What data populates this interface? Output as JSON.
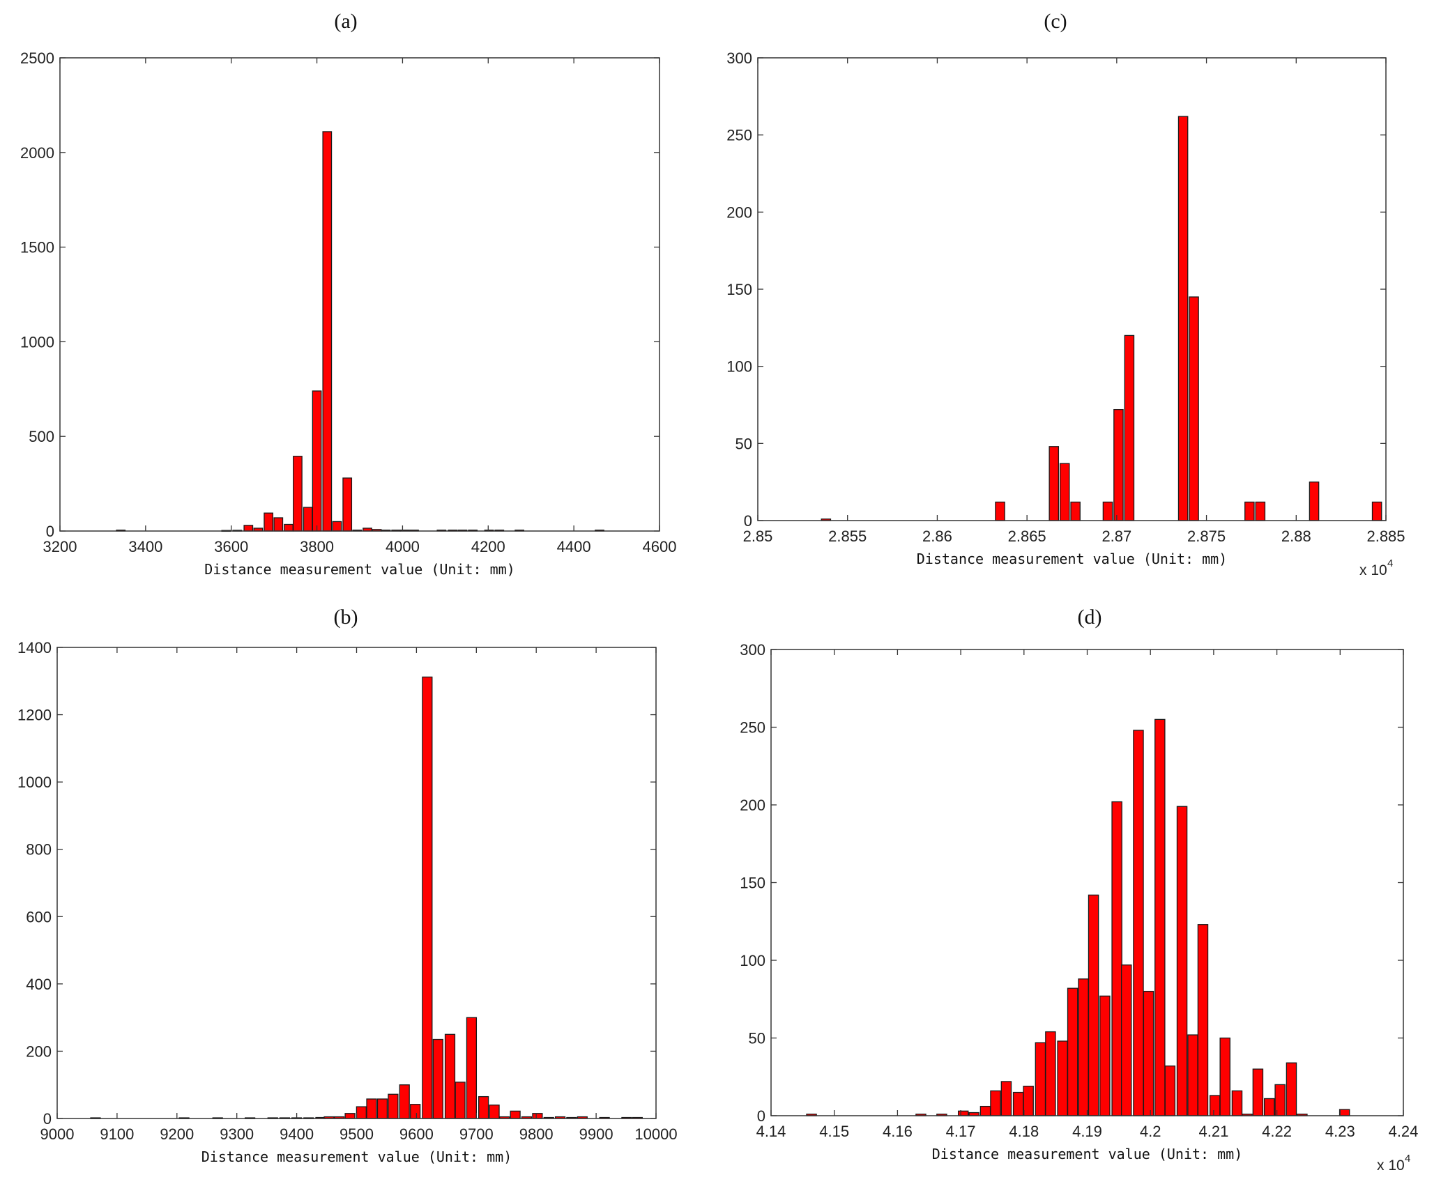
{
  "chart_data": [
    {
      "type": "bar",
      "panel": "(a)",
      "title": "(a)",
      "xlabel": "Distance measurement value (Unit: mm)",
      "ylabel": "",
      "xlim": [
        3200,
        4600
      ],
      "ylim": [
        0,
        2500
      ],
      "xticks": [
        3200,
        3400,
        3600,
        3800,
        4000,
        4200,
        4400,
        4600
      ],
      "xtick_labels": [
        "3200",
        "3400",
        "3600",
        "3800",
        "4000",
        "4200",
        "4400",
        "4600"
      ],
      "yticks": [
        0,
        500,
        1000,
        1500,
        2000,
        2500
      ],
      "ytick_labels": [
        "0",
        "500",
        "1000",
        "1500",
        "2000",
        "2500"
      ],
      "x_multiplier": "",
      "bin_width": 22,
      "x": [
        3342,
        3588,
        3614,
        3640,
        3663,
        3687,
        3710,
        3734,
        3755,
        3779,
        3800,
        3824,
        3847,
        3871,
        3894,
        3918,
        3940,
        3961,
        3985,
        4005,
        4027,
        4091,
        4117,
        4140,
        4164,
        4202,
        4226,
        4273,
        4460
      ],
      "values": [
        5,
        3,
        4,
        30,
        15,
        95,
        70,
        35,
        395,
        125,
        740,
        2110,
        50,
        280,
        5,
        15,
        8,
        5,
        5,
        5,
        5,
        5,
        5,
        5,
        5,
        5,
        5,
        5,
        5
      ]
    },
    {
      "type": "bar",
      "panel": "(c)",
      "title": "(c)",
      "xlabel": "Distance measurement value (Unit: mm)",
      "ylabel": "",
      "xlim": [
        2.85,
        2.885
      ],
      "ylim": [
        0,
        300
      ],
      "xticks": [
        2.85,
        2.855,
        2.86,
        2.865,
        2.87,
        2.875,
        2.88,
        2.885
      ],
      "xtick_labels": [
        "2.85",
        "2.855",
        "2.86",
        "2.865",
        "2.87",
        "2.875",
        "2.88",
        "2.885"
      ],
      "yticks": [
        0,
        50,
        100,
        150,
        200,
        250,
        300
      ],
      "ytick_labels": [
        "0",
        "50",
        "100",
        "150",
        "200",
        "250",
        "300"
      ],
      "x_multiplier": "x 10",
      "x_multiplier_exp": "4",
      "bin_width": 0.00056,
      "x": [
        2.8538,
        2.8635,
        2.8665,
        2.8671,
        2.8677,
        2.8695,
        2.8701,
        2.8707,
        2.8737,
        2.8743,
        2.8774,
        2.878,
        2.881,
        2.8845
      ],
      "values": [
        1,
        12,
        48,
        37,
        12,
        12,
        72,
        120,
        262,
        145,
        12,
        12,
        25,
        12
      ]
    },
    {
      "type": "bar",
      "panel": "(b)",
      "title": "(b)",
      "xlabel": "Distance measurement value (Unit: mm)",
      "ylabel": "",
      "xlim": [
        9000,
        10000
      ],
      "ylim": [
        0,
        1400
      ],
      "xticks": [
        9000,
        9100,
        9200,
        9300,
        9400,
        9500,
        9600,
        9700,
        9800,
        9900,
        10000
      ],
      "xtick_labels": [
        "9000",
        "9100",
        "9200",
        "9300",
        "9400",
        "9500",
        "9600",
        "9700",
        "9800",
        "9900",
        "10000"
      ],
      "yticks": [
        0,
        200,
        400,
        600,
        800,
        1000,
        1200,
        1400
      ],
      "ytick_labels": [
        "0",
        "200",
        "400",
        "600",
        "800",
        "1000",
        "1200",
        "1400"
      ],
      "x_multiplier": "",
      "bin_width": 17.6,
      "x": [
        9064,
        9212,
        9268,
        9322,
        9360,
        9380,
        9400,
        9420,
        9440,
        9454,
        9471,
        9489,
        9508,
        9525,
        9543,
        9561,
        9580,
        9598,
        9618,
        9636,
        9656,
        9673,
        9692,
        9712,
        9730,
        9747,
        9765,
        9784,
        9802,
        9821,
        9840,
        9859,
        9877,
        9914,
        9951,
        9969
      ],
      "values": [
        2,
        2,
        2,
        2,
        2,
        2,
        2,
        2,
        3,
        5,
        5,
        15,
        35,
        58,
        58,
        72,
        100,
        42,
        1312,
        235,
        250,
        108,
        300,
        65,
        40,
        5,
        22,
        5,
        15,
        3,
        5,
        3,
        5,
        3,
        3,
        3
      ]
    },
    {
      "type": "bar",
      "panel": "(d)",
      "title": "(d)",
      "xlabel": "Distance measurement value (Unit: mm)",
      "ylabel": "",
      "xlim": [
        4.14,
        4.24
      ],
      "ylim": [
        0,
        300
      ],
      "xticks": [
        4.14,
        4.15,
        4.16,
        4.17,
        4.18,
        4.19,
        4.2,
        4.21,
        4.22,
        4.23,
        4.24
      ],
      "xtick_labels": [
        "4.14",
        "4.15",
        "4.16",
        "4.17",
        "4.18",
        "4.19",
        "4.2",
        "4.21",
        "4.22",
        "4.23",
        "4.24"
      ],
      "yticks": [
        0,
        50,
        100,
        150,
        200,
        250,
        300
      ],
      "ytick_labels": [
        "0",
        "50",
        "100",
        "150",
        "200",
        "250",
        "300"
      ],
      "x_multiplier": "x 10",
      "x_multiplier_exp": "4",
      "bin_width": 0.0017,
      "x": [
        4.1464,
        4.1637,
        4.167,
        4.1704,
        4.1721,
        4.1739,
        4.1755,
        4.1772,
        4.1791,
        4.1807,
        4.1826,
        4.1842,
        4.1861,
        4.1877,
        4.1894,
        4.191,
        4.1928,
        4.1947,
        4.1962,
        4.1981,
        4.1997,
        4.2015,
        4.2031,
        4.205,
        4.2067,
        4.2083,
        4.2102,
        4.2118,
        4.2137,
        4.2153,
        4.217,
        4.2188,
        4.2205,
        4.2223,
        4.224,
        4.2307
      ],
      "values": [
        1,
        1,
        1,
        3,
        2,
        6,
        16,
        22,
        15,
        19,
        47,
        54,
        48,
        82,
        88,
        142,
        77,
        202,
        97,
        248,
        80,
        255,
        32,
        199,
        52,
        123,
        13,
        50,
        16,
        1,
        30,
        11,
        20,
        34,
        1,
        4
      ]
    }
  ],
  "colors": {
    "bar_fill": "#ff0000",
    "bar_edge": "#1a1a1a",
    "axis": "#333333"
  }
}
